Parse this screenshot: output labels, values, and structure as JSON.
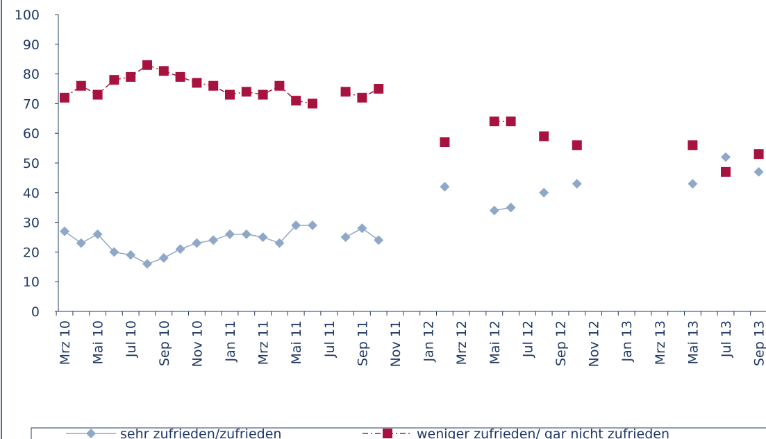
{
  "chart_data": {
    "type": "line",
    "categories": [
      "Mrz 10",
      null,
      "Mai 10",
      null,
      "Jul 10",
      null,
      "Sep 10",
      null,
      "Nov 10",
      null,
      "Jan 11",
      null,
      "Mrz 11",
      null,
      "Mai 11",
      null,
      "Jul 11",
      null,
      "Sep 11",
      null,
      "Nov 11",
      null,
      "Jan 12",
      null,
      "Mrz 12",
      null,
      "Mai 12",
      null,
      "Jul 12",
      null,
      "Sep 12",
      null,
      "Nov 12",
      null,
      "Jan 13",
      null,
      "Mrz 13",
      null,
      "Mai 13",
      null,
      "Jul 13",
      null,
      "Sep 13"
    ],
    "series": [
      {
        "name": "sehr zufrieden/zufrieden",
        "color": "#8fa8c8",
        "marker": "diamond",
        "line": "solid",
        "values": [
          27,
          23,
          26,
          20,
          19,
          16,
          18,
          21,
          23,
          24,
          26,
          26,
          25,
          23,
          29,
          29,
          null,
          25,
          28,
          24,
          null,
          null,
          null,
          42,
          null,
          null,
          34,
          35,
          null,
          40,
          null,
          43,
          null,
          null,
          null,
          null,
          null,
          null,
          43,
          null,
          52,
          null,
          47
        ]
      },
      {
        "name": "weniger zufrieden/ gar nicht zufrieden",
        "color": "#a8123e",
        "marker": "square",
        "line": "dashdot",
        "values": [
          72,
          76,
          73,
          78,
          79,
          83,
          81,
          79,
          77,
          76,
          73,
          74,
          73,
          76,
          71,
          70,
          null,
          74,
          72,
          75,
          null,
          null,
          null,
          57,
          null,
          null,
          64,
          64,
          null,
          59,
          null,
          56,
          null,
          null,
          null,
          null,
          null,
          null,
          56,
          null,
          47,
          null,
          53
        ]
      }
    ],
    "ylim": [
      0,
      100
    ],
    "yticks": [
      0,
      10,
      20,
      30,
      40,
      50,
      60,
      70,
      80,
      90,
      100
    ],
    "legend": "bottom"
  }
}
